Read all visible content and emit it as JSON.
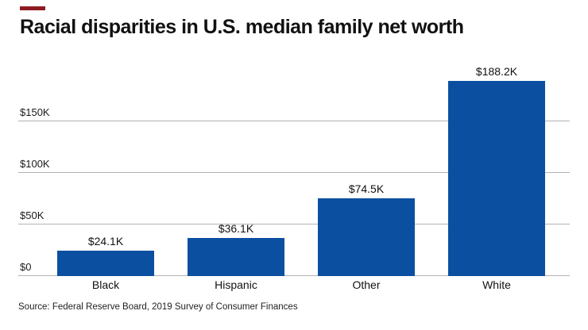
{
  "title": "Racial disparities in U.S. median family net worth",
  "source": "Source: Federal Reserve Board, 2019 Survey of Consumer Finances",
  "colors": {
    "bar": "#0B4FA0",
    "accent_dash": "#8E1B21",
    "gridline": "#b3b3b3"
  },
  "chart_data": {
    "type": "bar",
    "title": "Racial disparities in U.S. median family net worth",
    "categories": [
      "Black",
      "Hispanic",
      "Other",
      "White"
    ],
    "values": [
      24.1,
      36.1,
      74.5,
      188.2
    ],
    "value_labels": [
      "$24.1K",
      "$36.1K",
      "$74.5K",
      "$188.2K"
    ],
    "xlabel": "",
    "ylabel": "",
    "ylim": [
      0,
      195
    ],
    "y_ticks": [
      {
        "label": "$0",
        "value": 0
      },
      {
        "label": "$50K",
        "value": 50
      },
      {
        "label": "$100K",
        "value": 100
      },
      {
        "label": "$150K",
        "value": 150
      }
    ],
    "grid": true,
    "legend": false,
    "source": "Source: Federal Reserve Board, 2019 Survey of Consumer Finances"
  }
}
